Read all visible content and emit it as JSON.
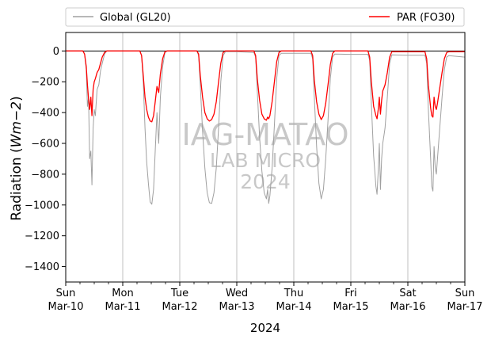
{
  "chart_data": {
    "type": "line",
    "title": "",
    "xlabel": "2024",
    "ylabel_prefix": "Radiation (",
    "ylabel_unit": "Wm−2",
    "ylabel_suffix": ")",
    "ylim": [
      -1500,
      120
    ],
    "yticks": [
      0,
      -200,
      -400,
      -600,
      -800,
      -1000,
      -1200,
      -1400
    ],
    "xlim_days": [
      0,
      7
    ],
    "xticks": [
      {
        "day": 0,
        "weekday": "Sun",
        "date": "Mar-10"
      },
      {
        "day": 1,
        "weekday": "Mon",
        "date": "Mar-11"
      },
      {
        "day": 2,
        "weekday": "Tue",
        "date": "Mar-12"
      },
      {
        "day": 3,
        "weekday": "Wed",
        "date": "Mar-13"
      },
      {
        "day": 4,
        "weekday": "Thu",
        "date": "Mar-14"
      },
      {
        "day": 5,
        "weekday": "Fri",
        "date": "Mar-15"
      },
      {
        "day": 6,
        "weekday": "Sat",
        "date": "Mar-16"
      },
      {
        "day": 7,
        "weekday": "Sun",
        "date": "Mar-17"
      }
    ],
    "grid": "x-major",
    "zero_line": true,
    "legend": "top, outside, two columns",
    "watermark": [
      "IAG-MATAO",
      "LAB MICRO",
      "2024"
    ],
    "series": [
      {
        "name": "Global (GL20)",
        "color": "#a0a0a0",
        "points": [
          [
            0.0,
            0
          ],
          [
            0.3,
            0
          ],
          [
            0.33,
            -20
          ],
          [
            0.36,
            -120
          ],
          [
            0.38,
            -360
          ],
          [
            0.4,
            -300
          ],
          [
            0.42,
            -700
          ],
          [
            0.44,
            -650
          ],
          [
            0.46,
            -870
          ],
          [
            0.48,
            -500
          ],
          [
            0.5,
            -380
          ],
          [
            0.52,
            -420
          ],
          [
            0.55,
            -250
          ],
          [
            0.58,
            -220
          ],
          [
            0.61,
            -130
          ],
          [
            0.64,
            -80
          ],
          [
            0.68,
            -20
          ],
          [
            0.72,
            0
          ],
          [
            1.3,
            0
          ],
          [
            1.33,
            -30
          ],
          [
            1.36,
            -200
          ],
          [
            1.39,
            -500
          ],
          [
            1.42,
            -720
          ],
          [
            1.45,
            -860
          ],
          [
            1.48,
            -980
          ],
          [
            1.51,
            -995
          ],
          [
            1.54,
            -900
          ],
          [
            1.57,
            -650
          ],
          [
            1.6,
            -400
          ],
          [
            1.63,
            -600
          ],
          [
            1.66,
            -300
          ],
          [
            1.7,
            -100
          ],
          [
            1.74,
            -10
          ],
          [
            1.78,
            0
          ],
          [
            2.3,
            0
          ],
          [
            2.33,
            -30
          ],
          [
            2.36,
            -220
          ],
          [
            2.4,
            -520
          ],
          [
            2.44,
            -760
          ],
          [
            2.48,
            -920
          ],
          [
            2.52,
            -985
          ],
          [
            2.56,
            -990
          ],
          [
            2.6,
            -920
          ],
          [
            2.64,
            -760
          ],
          [
            2.68,
            -500
          ],
          [
            2.72,
            -200
          ],
          [
            2.76,
            -30
          ],
          [
            2.8,
            -5
          ],
          [
            2.98,
            -5
          ],
          [
            3.0,
            -5
          ],
          [
            3.3,
            -10
          ],
          [
            3.33,
            -40
          ],
          [
            3.36,
            -260
          ],
          [
            3.4,
            -560
          ],
          [
            3.44,
            -780
          ],
          [
            3.48,
            -920
          ],
          [
            3.52,
            -960
          ],
          [
            3.54,
            -900
          ],
          [
            3.56,
            -990
          ],
          [
            3.58,
            -940
          ],
          [
            3.62,
            -760
          ],
          [
            3.66,
            -480
          ],
          [
            3.7,
            -180
          ],
          [
            3.74,
            -30
          ],
          [
            3.78,
            -15
          ],
          [
            4.0,
            -15
          ],
          [
            4.3,
            -15
          ],
          [
            4.33,
            -50
          ],
          [
            4.36,
            -300
          ],
          [
            4.4,
            -620
          ],
          [
            4.44,
            -860
          ],
          [
            4.48,
            -960
          ],
          [
            4.52,
            -900
          ],
          [
            4.56,
            -700
          ],
          [
            4.6,
            -450
          ],
          [
            4.64,
            -180
          ],
          [
            4.68,
            -40
          ],
          [
            4.72,
            -20
          ],
          [
            5.0,
            -22
          ],
          [
            5.3,
            -22
          ],
          [
            5.33,
            -60
          ],
          [
            5.36,
            -340
          ],
          [
            5.4,
            -680
          ],
          [
            5.44,
            -880
          ],
          [
            5.46,
            -930
          ],
          [
            5.48,
            -780
          ],
          [
            5.5,
            -600
          ],
          [
            5.52,
            -900
          ],
          [
            5.54,
            -700
          ],
          [
            5.56,
            -600
          ],
          [
            5.58,
            -550
          ],
          [
            5.6,
            -500
          ],
          [
            5.64,
            -300
          ],
          [
            5.68,
            -80
          ],
          [
            5.72,
            -25
          ],
          [
            6.0,
            -28
          ],
          [
            6.3,
            -28
          ],
          [
            6.33,
            -80
          ],
          [
            6.36,
            -380
          ],
          [
            6.4,
            -700
          ],
          [
            6.42,
            -880
          ],
          [
            6.44,
            -910
          ],
          [
            6.46,
            -620
          ],
          [
            6.48,
            -760
          ],
          [
            6.5,
            -800
          ],
          [
            6.52,
            -700
          ],
          [
            6.56,
            -500
          ],
          [
            6.6,
            -300
          ],
          [
            6.64,
            -120
          ],
          [
            6.68,
            -40
          ],
          [
            6.72,
            -30
          ],
          [
            7.0,
            -40
          ]
        ]
      },
      {
        "name": "PAR (FO30)",
        "color": "#ff0000",
        "points": [
          [
            0.0,
            0
          ],
          [
            0.3,
            0
          ],
          [
            0.33,
            -20
          ],
          [
            0.36,
            -100
          ],
          [
            0.38,
            -220
          ],
          [
            0.4,
            -310
          ],
          [
            0.42,
            -380
          ],
          [
            0.44,
            -300
          ],
          [
            0.46,
            -420
          ],
          [
            0.48,
            -250
          ],
          [
            0.5,
            -200
          ],
          [
            0.52,
            -180
          ],
          [
            0.55,
            -140
          ],
          [
            0.58,
            -120
          ],
          [
            0.61,
            -80
          ],
          [
            0.64,
            -40
          ],
          [
            0.68,
            -10
          ],
          [
            0.72,
            0
          ],
          [
            1.3,
            0
          ],
          [
            1.33,
            -30
          ],
          [
            1.36,
            -160
          ],
          [
            1.39,
            -300
          ],
          [
            1.42,
            -380
          ],
          [
            1.45,
            -430
          ],
          [
            1.48,
            -455
          ],
          [
            1.51,
            -460
          ],
          [
            1.54,
            -420
          ],
          [
            1.57,
            -330
          ],
          [
            1.6,
            -230
          ],
          [
            1.63,
            -270
          ],
          [
            1.66,
            -150
          ],
          [
            1.7,
            -50
          ],
          [
            1.74,
            -5
          ],
          [
            1.78,
            0
          ],
          [
            2.3,
            0
          ],
          [
            2.33,
            -20
          ],
          [
            2.36,
            -160
          ],
          [
            2.4,
            -300
          ],
          [
            2.44,
            -400
          ],
          [
            2.48,
            -440
          ],
          [
            2.52,
            -455
          ],
          [
            2.56,
            -445
          ],
          [
            2.6,
            -410
          ],
          [
            2.64,
            -330
          ],
          [
            2.68,
            -200
          ],
          [
            2.72,
            -80
          ],
          [
            2.76,
            -10
          ],
          [
            2.8,
            0
          ],
          [
            2.98,
            0
          ],
          [
            3.0,
            0
          ],
          [
            3.3,
            0
          ],
          [
            3.33,
            -30
          ],
          [
            3.36,
            -180
          ],
          [
            3.4,
            -320
          ],
          [
            3.44,
            -410
          ],
          [
            3.48,
            -440
          ],
          [
            3.52,
            -450
          ],
          [
            3.54,
            -430
          ],
          [
            3.56,
            -440
          ],
          [
            3.58,
            -420
          ],
          [
            3.62,
            -330
          ],
          [
            3.66,
            -200
          ],
          [
            3.7,
            -70
          ],
          [
            3.74,
            -10
          ],
          [
            3.78,
            0
          ],
          [
            4.0,
            0
          ],
          [
            4.3,
            0
          ],
          [
            4.33,
            -30
          ],
          [
            4.36,
            -190
          ],
          [
            4.4,
            -330
          ],
          [
            4.44,
            -410
          ],
          [
            4.48,
            -445
          ],
          [
            4.52,
            -420
          ],
          [
            4.56,
            -340
          ],
          [
            4.6,
            -220
          ],
          [
            4.64,
            -90
          ],
          [
            4.68,
            -15
          ],
          [
            4.72,
            0
          ],
          [
            5.0,
            0
          ],
          [
            5.3,
            0
          ],
          [
            5.33,
            -40
          ],
          [
            5.36,
            -200
          ],
          [
            5.4,
            -360
          ],
          [
            5.44,
            -420
          ],
          [
            5.46,
            -440
          ],
          [
            5.48,
            -380
          ],
          [
            5.5,
            -300
          ],
          [
            5.52,
            -410
          ],
          [
            5.54,
            -320
          ],
          [
            5.56,
            -260
          ],
          [
            5.58,
            -240
          ],
          [
            5.6,
            -220
          ],
          [
            5.64,
            -140
          ],
          [
            5.68,
            -40
          ],
          [
            5.72,
            -5
          ],
          [
            6.0,
            -5
          ],
          [
            6.3,
            -5
          ],
          [
            6.33,
            -50
          ],
          [
            6.36,
            -220
          ],
          [
            6.4,
            -370
          ],
          [
            6.42,
            -420
          ],
          [
            6.44,
            -430
          ],
          [
            6.46,
            -300
          ],
          [
            6.48,
            -360
          ],
          [
            6.5,
            -380
          ],
          [
            6.52,
            -340
          ],
          [
            6.56,
            -240
          ],
          [
            6.6,
            -140
          ],
          [
            6.64,
            -50
          ],
          [
            6.68,
            -10
          ],
          [
            6.72,
            -5
          ],
          [
            7.0,
            -5
          ]
        ]
      }
    ]
  }
}
